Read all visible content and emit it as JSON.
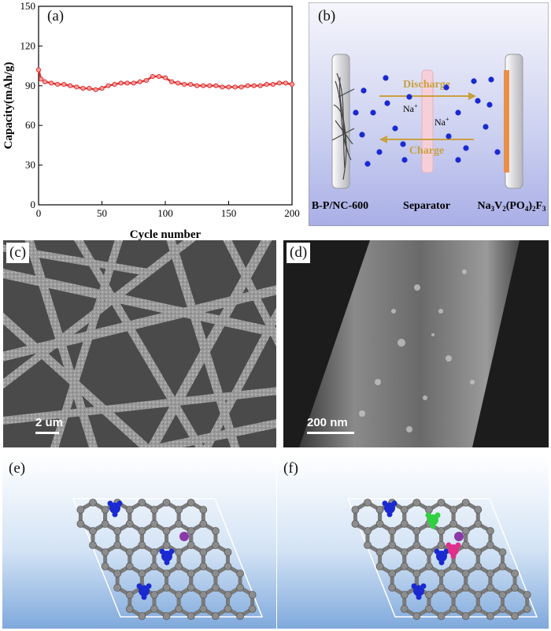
{
  "panels": {
    "a": {
      "label": "(a)"
    },
    "b": {
      "label": "(b)",
      "discharge": "Discharge",
      "charge": "Charge",
      "ion1": "Na",
      "ion1_sup": "+",
      "ion2": "Na",
      "ion2_sup": "+",
      "anode": "B-P/NC-600",
      "separator": "Separator",
      "cathode_parts": [
        "Na",
        "3",
        "V",
        "2",
        "(PO",
        "4",
        ")",
        "2",
        "F",
        "3"
      ]
    },
    "c": {
      "label": "(c)",
      "scalebar": "2 um"
    },
    "d": {
      "label": "(d)",
      "scalebar": "200 nm"
    },
    "e": {
      "label": "(e)"
    },
    "f": {
      "label": "(f)"
    }
  },
  "colors": {
    "capacity_line": "#e03030",
    "capacity_marker_fill": "#f6a0a0",
    "arrow": "#c8a040",
    "ion": "#1a2ad0",
    "separator": "#f6d0d8",
    "cathode": "#e8904a",
    "carbon": "#7a7a7a",
    "dopant_blue": "#1a2ad0",
    "dopant_green": "#30d040",
    "dopant_pink": "#e0308a",
    "sodium": "#8a3aa8"
  },
  "chart_data": {
    "type": "scatter",
    "xlabel": "Cycle number",
    "ylabel": "Capacity(mAh/g)",
    "xlim": [
      0,
      200
    ],
    "ylim": [
      0,
      150
    ],
    "xticks": [
      0,
      50,
      100,
      150,
      200
    ],
    "yticks": [
      0,
      30,
      60,
      90,
      120,
      150
    ],
    "series": [
      {
        "x": [
          0,
          2,
          5,
          10,
          15,
          20,
          25,
          30,
          35,
          40,
          45,
          50,
          55,
          60,
          65,
          70,
          75,
          80,
          85,
          90,
          95,
          100,
          105,
          110,
          115,
          120,
          125,
          130,
          135,
          140,
          145,
          150,
          155,
          160,
          165,
          170,
          175,
          180,
          185,
          190,
          195,
          200
        ],
        "y": [
          102,
          95,
          93,
          92,
          91,
          91,
          90,
          89,
          88,
          88,
          87,
          88,
          90,
          91,
          92,
          92,
          92,
          93,
          94,
          97,
          97,
          96,
          93,
          92,
          91,
          91,
          90,
          90,
          90,
          90,
          89,
          89,
          89,
          89,
          90,
          90,
          90,
          91,
          91,
          92,
          92,
          91
        ]
      }
    ]
  }
}
